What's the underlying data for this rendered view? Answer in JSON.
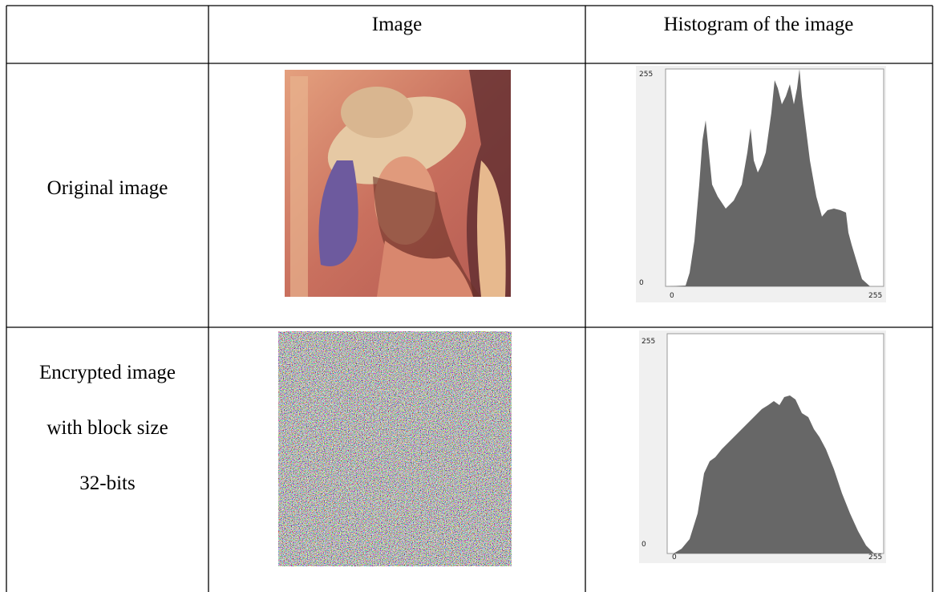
{
  "table": {
    "header": {
      "image": "Image",
      "histogram": "Histogram of the image"
    },
    "rows": [
      {
        "label": [
          "Original image"
        ],
        "histogram": {
          "y_max": 255,
          "y_min": 0,
          "x_min": 0,
          "x_max": 255
        }
      },
      {
        "label": [
          "Encrypted image",
          "with block size",
          "32-bits"
        ],
        "histogram": {
          "y_max": 255,
          "y_min": 0,
          "x_min": 0,
          "x_max": 255
        }
      }
    ]
  }
}
